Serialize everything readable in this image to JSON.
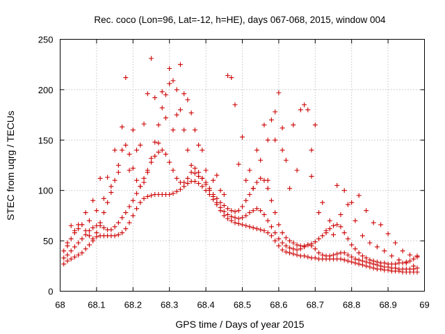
{
  "chart_data": {
    "type": "scatter",
    "title": "Rec. coco (Lon=96, Lat=-12, h=HE), days 067-068, 2015, window 004",
    "xlabel": "GPS time / Days of year 2015",
    "ylabel": "STEC from uqrg / TECUs",
    "xlim": [
      68,
      69
    ],
    "ylim": [
      0,
      250
    ],
    "x_ticks": [
      "68",
      "68.1",
      "68.2",
      "68.3",
      "68.4",
      "68.5",
      "68.6",
      "68.7",
      "68.8",
      "68.9",
      "69"
    ],
    "y_ticks": [
      "0",
      "50",
      "100",
      "150",
      "200",
      "250"
    ],
    "grid": true,
    "marker": "plus",
    "marker_color": "#cc0000",
    "points": [
      [
        68.01,
        27
      ],
      [
        68.02,
        30
      ],
      [
        68.03,
        32
      ],
      [
        68.04,
        34
      ],
      [
        68.05,
        36
      ],
      [
        68.06,
        38
      ],
      [
        68.07,
        42
      ],
      [
        68.08,
        46
      ],
      [
        68.09,
        50
      ],
      [
        68.1,
        54
      ],
      [
        68.11,
        55
      ],
      [
        68.12,
        55
      ],
      [
        68.13,
        55
      ],
      [
        68.14,
        55
      ],
      [
        68.15,
        55
      ],
      [
        68.16,
        56
      ],
      [
        68.17,
        58
      ],
      [
        68.18,
        62
      ],
      [
        68.19,
        68
      ],
      [
        68.2,
        75
      ],
      [
        68.21,
        82
      ],
      [
        68.22,
        88
      ],
      [
        68.23,
        92
      ],
      [
        68.24,
        94
      ],
      [
        68.25,
        95
      ],
      [
        68.26,
        96
      ],
      [
        68.27,
        96
      ],
      [
        68.28,
        96
      ],
      [
        68.29,
        96
      ],
      [
        68.3,
        96
      ],
      [
        68.31,
        97
      ],
      [
        68.32,
        99
      ],
      [
        68.33,
        101
      ],
      [
        68.34,
        104
      ],
      [
        68.35,
        107
      ],
      [
        68.36,
        109
      ],
      [
        68.37,
        109
      ],
      [
        68.38,
        107
      ],
      [
        68.39,
        104
      ],
      [
        68.4,
        100
      ],
      [
        68.41,
        96
      ],
      [
        68.42,
        91
      ],
      [
        68.43,
        86
      ],
      [
        68.44,
        80
      ],
      [
        68.45,
        75
      ],
      [
        68.46,
        72
      ],
      [
        68.47,
        70
      ],
      [
        68.48,
        68
      ],
      [
        68.49,
        67
      ],
      [
        68.5,
        66
      ],
      [
        68.51,
        65
      ],
      [
        68.52,
        64
      ],
      [
        68.53,
        63
      ],
      [
        68.54,
        62
      ],
      [
        68.55,
        61
      ],
      [
        68.56,
        60
      ],
      [
        68.57,
        58
      ],
      [
        68.58,
        55
      ],
      [
        68.59,
        50
      ],
      [
        68.6,
        45
      ],
      [
        68.61,
        41
      ],
      [
        68.62,
        39
      ],
      [
        68.63,
        38
      ],
      [
        68.64,
        37
      ],
      [
        68.65,
        36
      ],
      [
        68.66,
        35
      ],
      [
        68.67,
        35
      ],
      [
        68.68,
        34
      ],
      [
        68.69,
        33
      ],
      [
        68.7,
        33
      ],
      [
        68.71,
        32
      ],
      [
        68.72,
        32
      ],
      [
        68.73,
        32
      ],
      [
        68.74,
        32
      ],
      [
        68.75,
        32
      ],
      [
        68.76,
        32
      ],
      [
        68.77,
        32
      ],
      [
        68.78,
        31
      ],
      [
        68.79,
        30
      ],
      [
        68.8,
        29
      ],
      [
        68.81,
        28
      ],
      [
        68.82,
        27
      ],
      [
        68.83,
        26
      ],
      [
        68.84,
        25
      ],
      [
        68.85,
        24
      ],
      [
        68.86,
        23
      ],
      [
        68.87,
        22
      ],
      [
        68.88,
        22
      ],
      [
        68.89,
        21
      ],
      [
        68.9,
        21
      ],
      [
        68.91,
        20
      ],
      [
        68.92,
        20
      ],
      [
        68.93,
        20
      ],
      [
        68.94,
        19
      ],
      [
        68.95,
        19
      ],
      [
        68.96,
        19
      ],
      [
        68.97,
        19
      ],
      [
        68.98,
        19
      ],
      [
        68.01,
        33
      ],
      [
        68.02,
        36
      ],
      [
        68.03,
        40
      ],
      [
        68.04,
        44
      ],
      [
        68.05,
        48
      ],
      [
        68.06,
        52
      ],
      [
        68.07,
        56
      ],
      [
        68.08,
        60
      ],
      [
        68.09,
        63
      ],
      [
        68.1,
        65
      ],
      [
        68.11,
        65
      ],
      [
        68.12,
        63
      ],
      [
        68.13,
        61
      ],
      [
        68.14,
        61
      ],
      [
        68.15,
        64
      ],
      [
        68.16,
        68
      ],
      [
        68.17,
        73
      ],
      [
        68.18,
        78
      ],
      [
        68.19,
        84
      ],
      [
        68.2,
        90
      ],
      [
        68.21,
        97
      ],
      [
        68.22,
        104
      ],
      [
        68.23,
        112
      ],
      [
        68.24,
        120
      ],
      [
        68.25,
        128
      ],
      [
        68.26,
        134
      ],
      [
        68.27,
        138
      ],
      [
        68.28,
        140
      ],
      [
        68.29,
        136
      ],
      [
        68.3,
        128
      ],
      [
        68.31,
        120
      ],
      [
        68.32,
        112
      ],
      [
        68.33,
        108
      ],
      [
        68.34,
        108
      ],
      [
        68.35,
        112
      ],
      [
        68.36,
        118
      ],
      [
        68.37,
        122
      ],
      [
        68.38,
        118
      ],
      [
        68.39,
        112
      ],
      [
        68.4,
        106
      ],
      [
        68.41,
        100
      ],
      [
        68.42,
        94
      ],
      [
        68.43,
        88
      ],
      [
        68.44,
        83
      ],
      [
        68.45,
        79
      ],
      [
        68.46,
        76
      ],
      [
        68.47,
        74
      ],
      [
        68.48,
        73
      ],
      [
        68.49,
        72
      ],
      [
        68.5,
        73
      ],
      [
        68.51,
        75
      ],
      [
        68.52,
        78
      ],
      [
        68.53,
        80
      ],
      [
        68.54,
        82
      ],
      [
        68.55,
        80
      ],
      [
        68.56,
        76
      ],
      [
        68.57,
        70
      ],
      [
        68.58,
        64
      ],
      [
        68.59,
        58
      ],
      [
        68.6,
        52
      ],
      [
        68.61,
        48
      ],
      [
        68.62,
        45
      ],
      [
        68.63,
        43
      ],
      [
        68.64,
        42
      ],
      [
        68.65,
        41
      ],
      [
        68.66,
        42
      ],
      [
        68.67,
        44
      ],
      [
        68.68,
        46
      ],
      [
        68.69,
        45
      ],
      [
        68.7,
        42
      ],
      [
        68.71,
        38
      ],
      [
        68.72,
        36
      ],
      [
        68.73,
        35
      ],
      [
        68.74,
        35
      ],
      [
        68.75,
        36
      ],
      [
        68.76,
        37
      ],
      [
        68.77,
        38
      ],
      [
        68.78,
        38
      ],
      [
        68.79,
        36
      ],
      [
        68.8,
        34
      ],
      [
        68.81,
        32
      ],
      [
        68.82,
        31
      ],
      [
        68.83,
        30
      ],
      [
        68.84,
        29
      ],
      [
        68.85,
        28
      ],
      [
        68.86,
        27
      ],
      [
        68.87,
        26
      ],
      [
        68.88,
        25
      ],
      [
        68.89,
        24
      ],
      [
        68.9,
        24
      ],
      [
        68.91,
        23
      ],
      [
        68.92,
        23
      ],
      [
        68.93,
        22
      ],
      [
        68.94,
        22
      ],
      [
        68.95,
        22
      ],
      [
        68.96,
        22
      ],
      [
        68.97,
        22
      ],
      [
        68.98,
        23
      ],
      [
        68.01,
        40
      ],
      [
        68.02,
        45
      ],
      [
        68.03,
        52
      ],
      [
        68.04,
        60
      ],
      [
        68.05,
        66
      ],
      [
        68.06,
        66
      ],
      [
        68.07,
        60
      ],
      [
        68.08,
        55
      ],
      [
        68.09,
        52
      ],
      [
        68.1,
        58
      ],
      [
        68.11,
        68
      ],
      [
        68.12,
        78
      ],
      [
        68.13,
        88
      ],
      [
        68.14,
        98
      ],
      [
        68.15,
        110
      ],
      [
        68.16,
        125
      ],
      [
        68.17,
        140
      ],
      [
        68.18,
        145
      ],
      [
        68.19,
        136
      ],
      [
        68.2,
        122
      ],
      [
        68.21,
        110
      ],
      [
        68.22,
        104
      ],
      [
        68.23,
        108
      ],
      [
        68.24,
        118
      ],
      [
        68.25,
        132
      ],
      [
        68.26,
        148
      ],
      [
        68.27,
        165
      ],
      [
        68.28,
        182
      ],
      [
        68.29,
        195
      ],
      [
        68.3,
        206
      ],
      [
        68.31,
        209
      ],
      [
        68.32,
        200
      ],
      [
        68.33,
        180
      ],
      [
        68.34,
        160
      ],
      [
        68.35,
        140
      ],
      [
        68.36,
        125
      ],
      [
        68.37,
        117
      ],
      [
        68.38,
        114
      ],
      [
        68.39,
        112
      ],
      [
        68.4,
        108
      ],
      [
        68.41,
        102
      ],
      [
        68.42,
        96
      ],
      [
        68.43,
        92
      ],
      [
        68.44,
        88
      ],
      [
        68.45,
        85
      ],
      [
        68.46,
        82
      ],
      [
        68.47,
        80
      ],
      [
        68.48,
        79
      ],
      [
        68.49,
        80
      ],
      [
        68.5,
        84
      ],
      [
        68.51,
        90
      ],
      [
        68.52,
        96
      ],
      [
        68.53,
        102
      ],
      [
        68.54,
        108
      ],
      [
        68.55,
        112
      ],
      [
        68.56,
        110
      ],
      [
        68.57,
        102
      ],
      [
        68.58,
        90
      ],
      [
        68.59,
        78
      ],
      [
        68.6,
        66
      ],
      [
        68.61,
        58
      ],
      [
        68.62,
        53
      ],
      [
        68.63,
        50
      ],
      [
        68.64,
        48
      ],
      [
        68.65,
        46
      ],
      [
        68.66,
        45
      ],
      [
        68.67,
        45
      ],
      [
        68.68,
        46
      ],
      [
        68.69,
        47
      ],
      [
        68.7,
        49
      ],
      [
        68.71,
        52
      ],
      [
        68.72,
        55
      ],
      [
        68.73,
        58
      ],
      [
        68.74,
        62
      ],
      [
        68.75,
        65
      ],
      [
        68.76,
        66
      ],
      [
        68.77,
        64
      ],
      [
        68.78,
        58
      ],
      [
        68.79,
        52
      ],
      [
        68.8,
        46
      ],
      [
        68.81,
        42
      ],
      [
        68.82,
        38
      ],
      [
        68.83,
        35
      ],
      [
        68.84,
        33
      ],
      [
        68.85,
        31
      ],
      [
        68.86,
        30
      ],
      [
        68.87,
        29
      ],
      [
        68.88,
        28
      ],
      [
        68.89,
        28
      ],
      [
        68.9,
        27
      ],
      [
        68.91,
        27
      ],
      [
        68.92,
        27
      ],
      [
        68.93,
        28
      ],
      [
        68.94,
        28
      ],
      [
        68.95,
        29
      ],
      [
        68.96,
        30
      ],
      [
        68.97,
        32
      ],
      [
        68.98,
        34
      ],
      [
        68.02,
        48
      ],
      [
        68.04,
        58
      ],
      [
        68.06,
        66
      ],
      [
        68.08,
        70
      ],
      [
        68.1,
        80
      ],
      [
        68.12,
        92
      ],
      [
        68.14,
        104
      ],
      [
        68.16,
        118
      ],
      [
        68.18,
        212
      ],
      [
        68.2,
        160
      ],
      [
        68.22,
        145
      ],
      [
        68.24,
        196
      ],
      [
        68.25,
        231
      ],
      [
        68.26,
        192
      ],
      [
        68.28,
        198
      ],
      [
        68.3,
        221
      ],
      [
        68.32,
        175
      ],
      [
        68.33,
        225
      ],
      [
        68.34,
        196
      ],
      [
        68.36,
        177
      ],
      [
        68.38,
        145
      ],
      [
        68.4,
        120
      ],
      [
        68.42,
        110
      ],
      [
        68.44,
        100
      ],
      [
        68.46,
        214
      ],
      [
        68.47,
        212
      ],
      [
        68.48,
        185
      ],
      [
        68.5,
        153
      ],
      [
        68.52,
        120
      ],
      [
        68.54,
        140
      ],
      [
        68.56,
        165
      ],
      [
        68.57,
        150
      ],
      [
        68.58,
        170
      ],
      [
        68.59,
        178
      ],
      [
        68.6,
        197
      ],
      [
        68.61,
        162
      ],
      [
        68.62,
        130
      ],
      [
        68.64,
        165
      ],
      [
        68.66,
        180
      ],
      [
        68.67,
        185
      ],
      [
        68.68,
        180
      ],
      [
        68.69,
        140
      ],
      [
        68.7,
        165
      ],
      [
        68.72,
        88
      ],
      [
        68.74,
        70
      ],
      [
        68.76,
        105
      ],
      [
        68.78,
        100
      ],
      [
        68.8,
        88
      ],
      [
        68.82,
        95
      ],
      [
        68.84,
        80
      ],
      [
        68.86,
        68
      ],
      [
        68.88,
        66
      ],
      [
        68.9,
        57
      ],
      [
        68.92,
        48
      ],
      [
        68.94,
        40
      ],
      [
        68.96,
        36
      ],
      [
        68.98,
        35
      ],
      [
        68.03,
        65
      ],
      [
        68.05,
        62
      ],
      [
        68.07,
        78
      ],
      [
        68.09,
        90
      ],
      [
        68.11,
        112
      ],
      [
        68.13,
        113
      ],
      [
        68.15,
        140
      ],
      [
        68.17,
        163
      ],
      [
        68.19,
        120
      ],
      [
        68.21,
        140
      ],
      [
        68.23,
        166
      ],
      [
        68.27,
        147
      ],
      [
        68.29,
        172
      ],
      [
        68.31,
        160
      ],
      [
        68.35,
        190
      ],
      [
        68.37,
        160
      ],
      [
        68.39,
        140
      ],
      [
        68.43,
        115
      ],
      [
        68.45,
        96
      ],
      [
        68.49,
        126
      ],
      [
        68.51,
        110
      ],
      [
        68.53,
        102
      ],
      [
        68.55,
        130
      ],
      [
        68.57,
        110
      ],
      [
        68.59,
        150
      ],
      [
        68.61,
        140
      ],
      [
        68.63,
        102
      ],
      [
        68.65,
        120
      ],
      [
        68.69,
        114
      ],
      [
        68.71,
        78
      ],
      [
        68.73,
        60
      ],
      [
        68.75,
        56
      ],
      [
        68.77,
        76
      ],
      [
        68.79,
        86
      ],
      [
        68.81,
        70
      ],
      [
        68.83,
        55
      ],
      [
        68.85,
        48
      ],
      [
        68.87,
        44
      ],
      [
        68.89,
        40
      ],
      [
        68.91,
        35
      ],
      [
        68.93,
        31
      ],
      [
        68.95,
        28
      ],
      [
        68.97,
        25
      ]
    ]
  }
}
